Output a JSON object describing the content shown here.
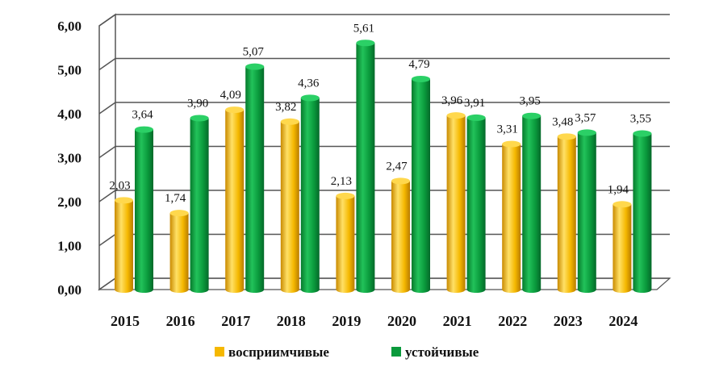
{
  "chart_data": {
    "type": "bar",
    "categories": [
      "2015",
      "2016",
      "2017",
      "2018",
      "2019",
      "2020",
      "2021",
      "2022",
      "2023",
      "2024"
    ],
    "series": [
      {
        "name": "восприимчивые",
        "values": [
          2.03,
          1.74,
          4.09,
          3.82,
          2.13,
          2.47,
          3.96,
          3.31,
          3.48,
          1.94
        ],
        "labels": [
          "2,03",
          "1,74",
          "4,09",
          "3,82",
          "2,13",
          "2,47",
          "3,96",
          "3,31",
          "3,48",
          "1,94"
        ],
        "color": "#F5B800"
      },
      {
        "name": "устойчивые",
        "values": [
          3.64,
          3.9,
          5.07,
          4.36,
          5.61,
          4.79,
          3.91,
          3.95,
          3.57,
          3.55
        ],
        "labels": [
          "3,64",
          "3,90",
          "5,07",
          "4,36",
          "5,61",
          "4,79",
          "3,91",
          "3,95",
          "3,57",
          "3,55"
        ],
        "color": "#0A9A3C"
      }
    ],
    "yticks": [
      "0,00",
      "1,00",
      "2,00",
      "3,00",
      "4,00",
      "5,00",
      "6,00"
    ],
    "ylim": [
      0,
      6
    ],
    "grid": true,
    "legend_position": "bottom",
    "title": "",
    "xlabel": "",
    "ylabel": ""
  }
}
